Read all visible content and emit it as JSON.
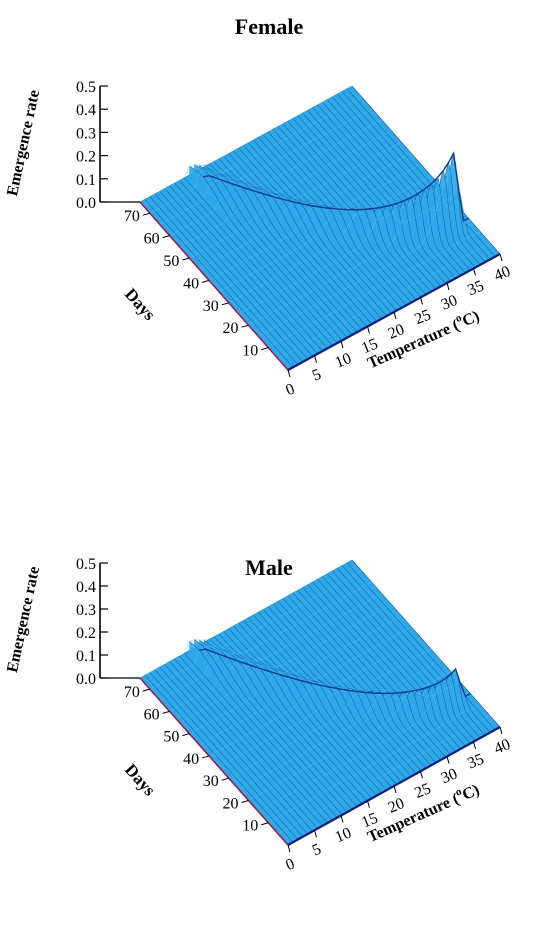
{
  "chart_data": [
    {
      "type": "surface3d",
      "title": "Female",
      "zlabel": "Emergence rate",
      "ylabel": "Days",
      "xlabel_text": "Temperature (",
      "xlabel_sup": "o",
      "xlabel_unit": "C)",
      "z_ticks": [
        "0.5",
        "0.4",
        "0.3",
        "0.2",
        "0.1",
        "0.0"
      ],
      "y_ticks": [
        "70",
        "60",
        "50",
        "40",
        "30",
        "20",
        "10"
      ],
      "x_ticks": [
        "0",
        "5",
        "10",
        "15",
        "20",
        "25",
        "30",
        "35",
        "40"
      ],
      "zlim": [
        0,
        0.5
      ],
      "ylim": [
        0,
        75
      ],
      "xlim": [
        0,
        40
      ],
      "surface_color": "#2fa8ea",
      "ridge_low_temp": {
        "temperature": 10,
        "days": 68,
        "peak_rate": 0.06
      },
      "ridge_high_temp": {
        "temperature": 36,
        "days": 16,
        "peak_rate": 0.28
      }
    },
    {
      "type": "surface3d",
      "title": "Male",
      "zlabel": "Emergence rate",
      "ylabel": "Days",
      "xlabel_text": "Temperature (",
      "xlabel_sup": "o",
      "xlabel_unit": "C)",
      "z_ticks": [
        "0.5",
        "0.4",
        "0.3",
        "0.2",
        "0.1",
        "0.0"
      ],
      "y_ticks": [
        "70",
        "60",
        "50",
        "40",
        "30",
        "20",
        "10"
      ],
      "x_ticks": [
        "0",
        "5",
        "10",
        "15",
        "20",
        "25",
        "30",
        "35",
        "40"
      ],
      "zlim": [
        0,
        0.5
      ],
      "ylim": [
        0,
        75
      ],
      "xlim": [
        0,
        40
      ],
      "surface_color": "#2fa8ea",
      "ridge_low_temp": {
        "temperature": 10,
        "days": 70,
        "peak_rate": 0.05
      },
      "ridge_high_temp": {
        "temperature": 36,
        "days": 15,
        "peak_rate": 0.13
      }
    }
  ]
}
